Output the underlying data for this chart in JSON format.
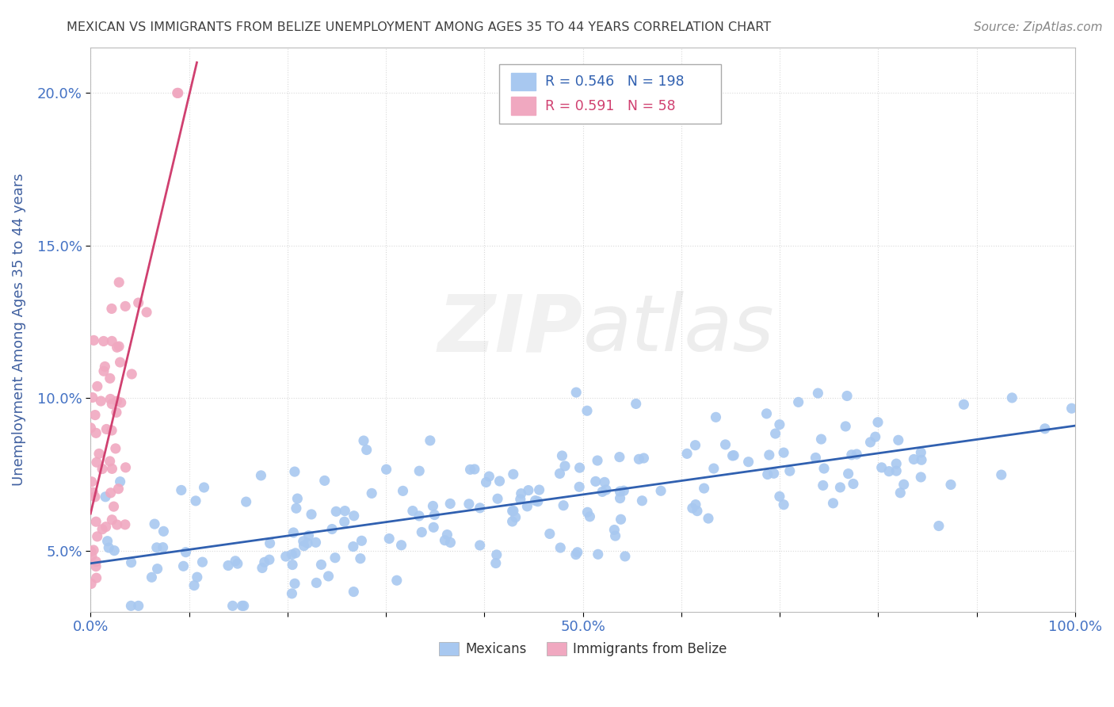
{
  "title": "MEXICAN VS IMMIGRANTS FROM BELIZE UNEMPLOYMENT AMONG AGES 35 TO 44 YEARS CORRELATION CHART",
  "source": "Source: ZipAtlas.com",
  "ylabel": "Unemployment Among Ages 35 to 44 years",
  "xlim": [
    0.0,
    1.0
  ],
  "ylim": [
    0.03,
    0.215
  ],
  "yticks": [
    0.05,
    0.1,
    0.15,
    0.2
  ],
  "ytick_labels": [
    "5.0%",
    "10.0%",
    "15.0%",
    "20.0%"
  ],
  "xtick_positions": [
    0.0,
    0.1,
    0.2,
    0.3,
    0.4,
    0.5,
    0.6,
    0.7,
    0.8,
    0.9,
    1.0
  ],
  "xtick_labels": [
    "0.0%",
    "",
    "",
    "",
    "",
    "50.0%",
    "",
    "",
    "",
    "",
    "100.0%"
  ],
  "mexican_color": "#a8c8f0",
  "belize_color": "#f0a8c0",
  "mexican_line_color": "#3060b0",
  "belize_line_color": "#d04070",
  "mexican_R": 0.546,
  "mexican_N": 198,
  "belize_R": 0.591,
  "belize_N": 58,
  "watermark_zip": "ZIP",
  "watermark_atlas": "atlas",
  "title_color": "#404040",
  "axis_label_color": "#4060a0",
  "tick_label_color": "#4472c4",
  "grid_color": "#d0d0d0",
  "legend_label_mex": "Mexicans",
  "legend_label_bel": "Immigrants from Belize"
}
